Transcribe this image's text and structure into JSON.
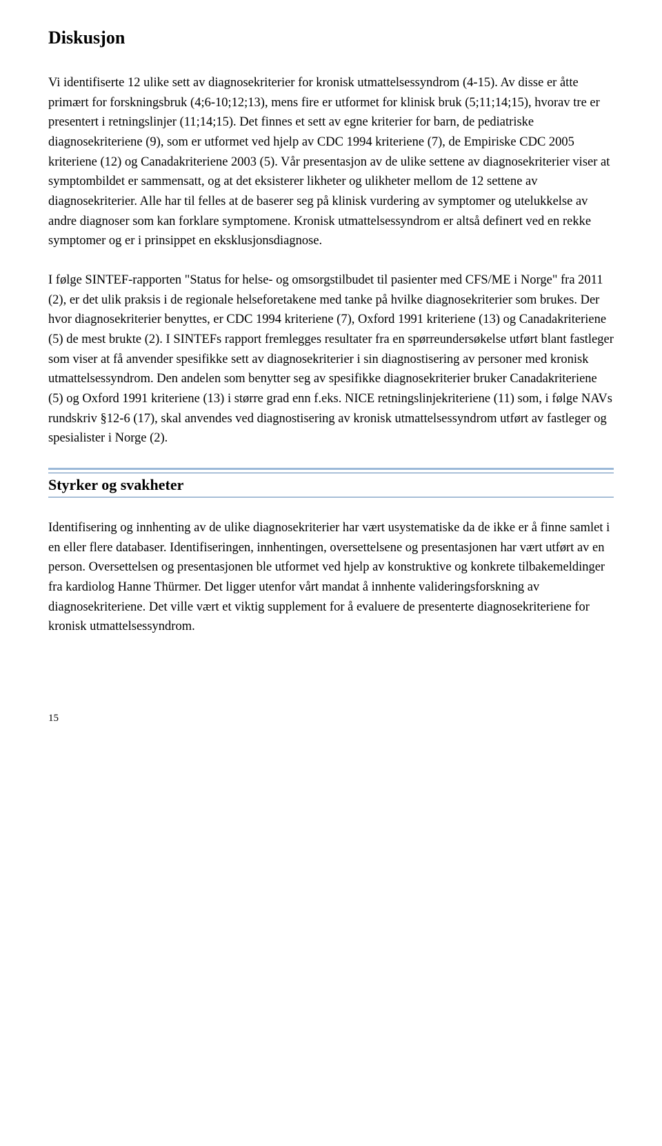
{
  "colors": {
    "text": "#000000",
    "background": "#ffffff",
    "rule_top_bar": "#9bb9d8",
    "rule_thin": "#5b86b5"
  },
  "heading": "Diskusjon",
  "para1": "Vi identifiserte 12 ulike sett av diagnosekriterier for kronisk utmattelsessyndrom (4-15). Av disse er åtte primært for forskningsbruk (4;6-10;12;13), mens fire er utformet for klinisk bruk (5;11;14;15), hvorav tre er presentert i retningslinjer (11;14;15). Det finnes et sett av egne kriterier for barn, de pediatriske diagnosekriteriene (9), som er utformet ved hjelp av CDC 1994 kriteriene (7), de Empiriske CDC 2005 kriteriene (12) og Canadakriteriene 2003 (5). Vår presentasjon av de ulike settene av diagnosekriterier viser at symptombildet er sammensatt, og at det eksisterer likheter og ulikheter mellom de 12 settene av diagnosekriterier. Alle har til felles at de baserer seg på klinisk vurdering av symptomer og utelukkelse av andre diagnoser som kan forklare symptomene. Kronisk utmattelsessyndrom er altså definert ved en rekke symptomer og er i prinsippet en eksklusjonsdiagnose.",
  "para2": "I følge SINTEF-rapporten \"Status for helse- og omsorgstilbudet til pasienter med CFS/ME i Norge\" fra 2011 (2), er det ulik praksis i de regionale helseforetakene med tanke på hvilke diagnosekriterier som brukes. Der hvor diagnosekriterier benyttes, er CDC 1994 kriteriene (7), Oxford 1991 kriteriene (13) og Canadakriteriene (5) de mest brukte (2). I SINTEFs rapport fremlegges resultater fra en spørreundersøkelse utført blant fastleger som viser at få anvender spesifikke sett av diagnosekriterier i sin diagnostisering av personer med kronisk utmattelsessyndrom. Den andelen som benytter seg av spesifikke diagnosekriterier bruker Canadakriteriene (5) og Oxford 1991 kriteriene (13) i større grad enn f.eks. NICE retningslinjekriteriene (11) som, i følge NAVs rundskriv §12-6 (17), skal anvendes ved diagnostisering av kronisk utmattelsessyndrom utført av fastleger og spesialister i Norge (2).",
  "subheading": "Styrker og svakheter",
  "para3": "Identifisering og innhenting av de ulike diagnosekriterier har vært usystematiske da de ikke er å finne samlet i en eller flere databaser. Identifiseringen, innhentingen, oversettelsene og presentasjonen har vært utført av en person. Oversettelsen og presentasjonen ble utformet ved hjelp av konstruktive og konkrete tilbakemeldinger fra kardiolog Hanne Thürmer. Det ligger utenfor vårt mandat å innhente valideringsforskning av diagnosekriteriene. Det ville vært et viktig supplement for å evaluere de presenterte diagnosekriteriene for kronisk utmattelsessyndrom.",
  "pageNumber": "15"
}
